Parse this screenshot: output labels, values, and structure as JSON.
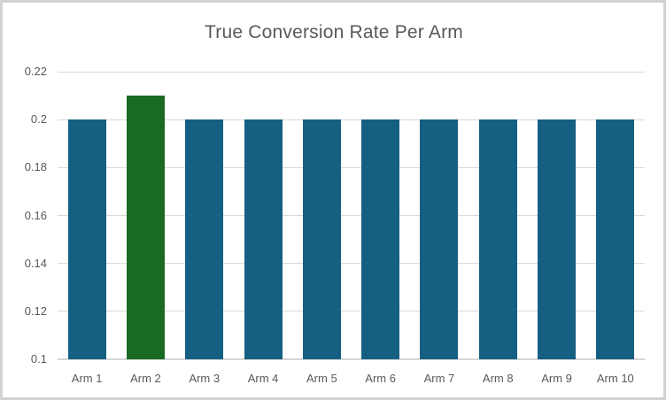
{
  "chart_data": {
    "type": "bar",
    "title": "True Conversion Rate Per Arm",
    "xlabel": "",
    "ylabel": "",
    "categories": [
      "Arm 1",
      "Arm 2",
      "Arm 3",
      "Arm 4",
      "Arm 5",
      "Arm 6",
      "Arm 7",
      "Arm 8",
      "Arm 9",
      "Arm 10"
    ],
    "values": [
      0.2,
      0.21,
      0.2,
      0.2,
      0.2,
      0.2,
      0.2,
      0.2,
      0.2,
      0.2
    ],
    "colors": [
      "#156082",
      "#196B24",
      "#156082",
      "#156082",
      "#156082",
      "#156082",
      "#156082",
      "#156082",
      "#156082",
      "#156082"
    ],
    "highlighted_category": "Arm 2",
    "default_bar_color": "#156082",
    "highlight_bar_color": "#196B24",
    "ylim": [
      0.1,
      0.22
    ],
    "yticks": [
      0.1,
      0.12,
      0.14,
      0.16,
      0.18,
      0.2,
      0.22
    ],
    "ytick_labels": [
      "0.1",
      "0.12",
      "0.14",
      "0.16",
      "0.18",
      "0.2",
      "0.22"
    ],
    "grid": true,
    "legend": "none",
    "text_color": "#595959",
    "gridline_color": "#D9D9D9",
    "axis_line_color": "#D5D5D5",
    "background_color": "#FFFFFF",
    "frame_border_color": "#D2D2D2"
  }
}
